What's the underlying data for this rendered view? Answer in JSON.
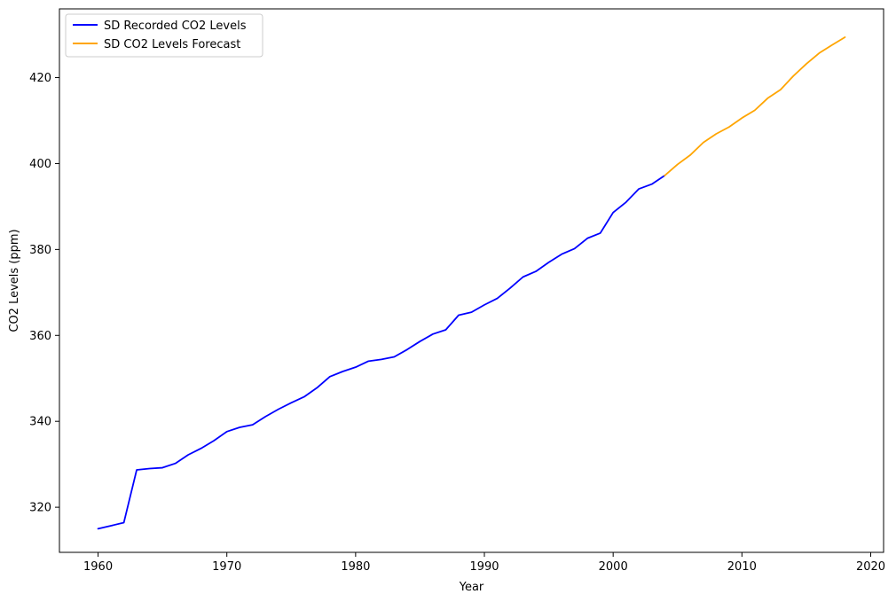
{
  "chart_data": {
    "type": "line",
    "title": "",
    "xlabel": "Year",
    "ylabel": "CO2 Levels (ppm)",
    "xlim": [
      1957,
      2021
    ],
    "ylim": [
      309.5,
      436
    ],
    "x_ticks": [
      1960,
      1970,
      1980,
      1990,
      2000,
      2010,
      2020
    ],
    "y_ticks": [
      320,
      340,
      360,
      380,
      400,
      420
    ],
    "grid": false,
    "legend_position": "top-left",
    "series": [
      {
        "name": "SD Recorded CO2 Levels",
        "color": "#0000ff",
        "x": [
          1960,
          1961,
          1962,
          1963,
          1964,
          1965,
          1966,
          1967,
          1968,
          1969,
          1970,
          1971,
          1972,
          1973,
          1974,
          1975,
          1976,
          1977,
          1978,
          1979,
          1980,
          1981,
          1982,
          1983,
          1984,
          1985,
          1986,
          1987,
          1988,
          1989,
          1990,
          1991,
          1992,
          1993,
          1994,
          1995,
          1996,
          1997,
          1998,
          1999,
          2000,
          2001,
          2002,
          2003,
          2004
        ],
        "y": [
          315.0,
          315.7,
          316.4,
          328.7,
          329.0,
          329.2,
          330.2,
          332.2,
          333.7,
          335.5,
          337.6,
          338.6,
          339.2,
          341.1,
          342.8,
          344.3,
          345.7,
          347.8,
          350.4,
          351.6,
          352.6,
          354.0,
          354.4,
          355.0,
          356.7,
          358.6,
          360.3,
          361.3,
          364.7,
          365.4,
          367.1,
          368.6,
          371.0,
          373.6,
          374.9,
          377.0,
          378.9,
          380.2,
          382.6,
          383.8,
          388.6,
          391.0,
          394.1,
          395.2,
          397.2
        ]
      },
      {
        "name": "SD CO2 Levels Forecast",
        "color": "#ffa500",
        "x": [
          2004,
          2005,
          2006,
          2007,
          2008,
          2009,
          2010,
          2011,
          2012,
          2013,
          2014,
          2015,
          2016,
          2017,
          2018
        ],
        "y": [
          397.2,
          399.8,
          402.0,
          404.9,
          406.9,
          408.5,
          410.6,
          412.4,
          415.2,
          417.2,
          420.4,
          423.2,
          425.7,
          427.6,
          429.4
        ]
      }
    ]
  }
}
